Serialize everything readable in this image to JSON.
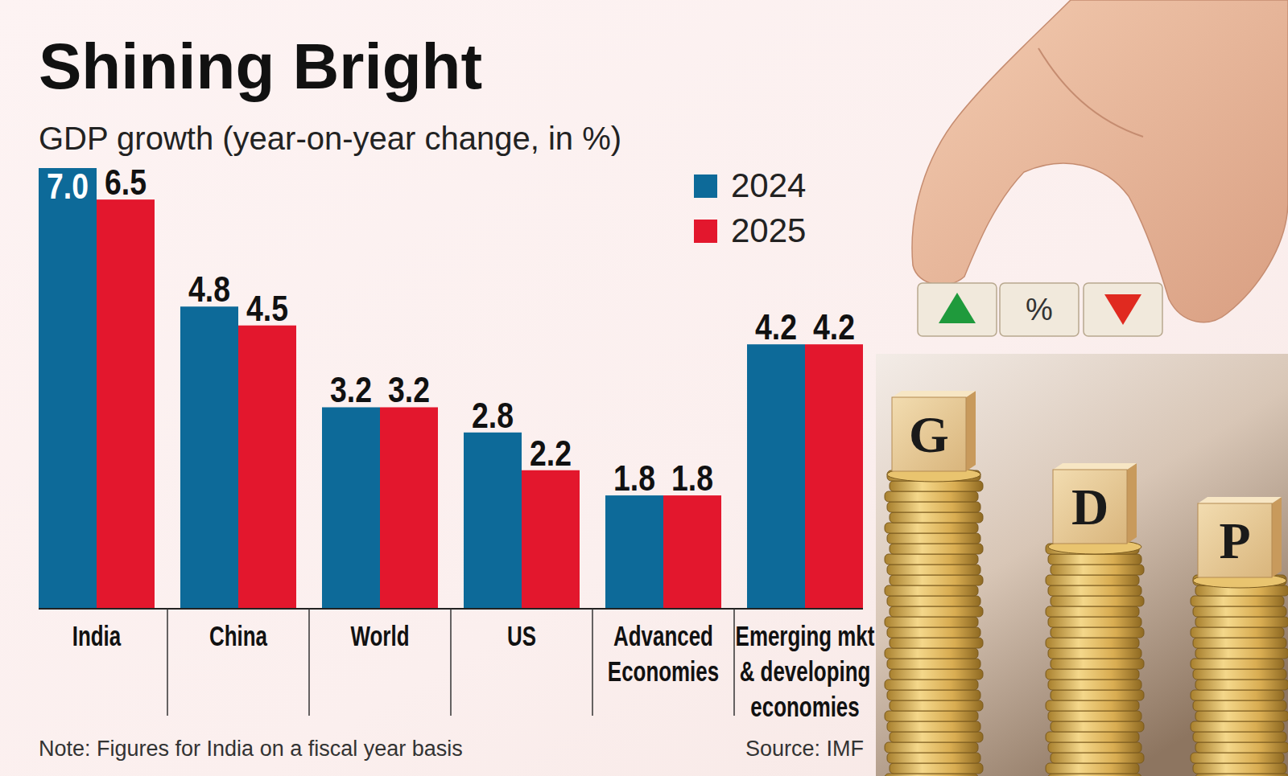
{
  "chart_data": {
    "type": "bar",
    "title": "Shining Bright",
    "subtitle": "GDP growth (year-on-year change, in %)",
    "categories": [
      "India",
      "China",
      "World",
      "US",
      "Advanced Economies",
      "Emerging mkt & developing economies"
    ],
    "series": [
      {
        "name": "2024",
        "color": "#0d6a99",
        "values": [
          7.0,
          4.8,
          3.2,
          2.8,
          1.8,
          4.2
        ],
        "value_labels": [
          "7.0",
          "4.8",
          "3.2",
          "2.8",
          "1.8",
          "4.2"
        ]
      },
      {
        "name": "2025",
        "color": "#e3172d",
        "values": [
          6.5,
          4.5,
          3.2,
          2.2,
          1.8,
          4.2
        ],
        "value_labels": [
          "6.5",
          "4.5",
          "3.2",
          "2.2",
          "1.8",
          "4.2"
        ]
      }
    ],
    "ylim": [
      0,
      7
    ],
    "data_labels": true,
    "tick_labels": "x",
    "legend": "top-right",
    "note": "Note: Figures for India on a fiscal year basis",
    "source": "Source: IMF"
  },
  "decoration": {
    "blocks": [
      "G",
      "D",
      "P"
    ],
    "cube": "%"
  }
}
